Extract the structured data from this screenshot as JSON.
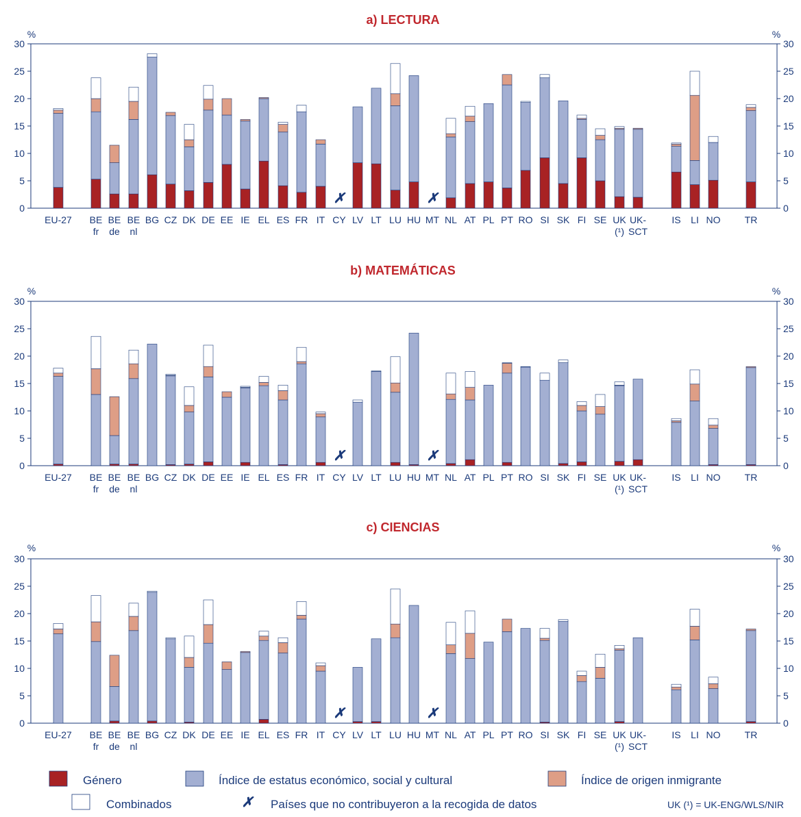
{
  "percent_symbol": "%",
  "categories": [
    [
      "EU-27"
    ],
    [
      "BE",
      "fr"
    ],
    [
      "BE",
      "de"
    ],
    [
      "BE",
      "nl"
    ],
    [
      "BG"
    ],
    [
      "CZ"
    ],
    [
      "DK"
    ],
    [
      "DE"
    ],
    [
      "EE"
    ],
    [
      "IE"
    ],
    [
      "EL"
    ],
    [
      "ES"
    ],
    [
      "FR"
    ],
    [
      "IT"
    ],
    [
      "CY"
    ],
    [
      "LV"
    ],
    [
      "LT"
    ],
    [
      "LU"
    ],
    [
      "HU"
    ],
    [
      "MT"
    ],
    [
      "NL"
    ],
    [
      "AT"
    ],
    [
      "PL"
    ],
    [
      "PT"
    ],
    [
      "RO"
    ],
    [
      "SI"
    ],
    [
      "SK"
    ],
    [
      "FI"
    ],
    [
      "SE"
    ],
    [
      "UK",
      "(¹)"
    ],
    [
      "UK-",
      "SCT"
    ],
    [
      "IS"
    ],
    [
      "LI"
    ],
    [
      "NO"
    ],
    [
      "TR"
    ]
  ],
  "missing_marker": "✗",
  "colors": {
    "genero": "#a82224",
    "indice": "#a3afd2",
    "inmigrante": "#de9e86",
    "combinados": "#ffffff",
    "axis": "#1b3a7a",
    "title": "#c0272d"
  },
  "legend": {
    "genero": "Género",
    "indice": "Índice de estatus económico, social y cultural",
    "inmigrante": "Índice de origen inmigrante",
    "combinados": "Combinados",
    "missing": "Países que no contribuyeron a la recogida de datos",
    "uk_note": "UK (¹) = UK-ENG/WLS/NIR"
  },
  "chart_data": [
    {
      "type": "bar",
      "stacked": true,
      "title": "a) LECTURA",
      "ylabel": "%",
      "ylim": [
        0,
        30
      ],
      "yticks": [
        0,
        5,
        10,
        15,
        20,
        25,
        30
      ],
      "missing": [
        "CY",
        "MT"
      ],
      "series": [
        {
          "name": "Género",
          "values": [
            3.8,
            5.3,
            2.6,
            2.6,
            6.1,
            4.4,
            3.2,
            4.7,
            8.0,
            3.5,
            8.6,
            4.1,
            2.9,
            4.0,
            null,
            8.3,
            8.1,
            3.3,
            4.8,
            null,
            1.9,
            4.5,
            4.8,
            3.7,
            6.9,
            9.2,
            4.5,
            9.2,
            5.0,
            2.1,
            2.0,
            6.6,
            4.3,
            5.1,
            4.8
          ]
        },
        {
          "name": "Índice de estatus económico, social y cultural",
          "values": [
            13.5,
            12.3,
            5.7,
            13.6,
            21.5,
            12.5,
            8.0,
            13.2,
            9.0,
            12.4,
            11.4,
            9.8,
            14.7,
            7.7,
            null,
            10.2,
            13.8,
            15.4,
            19.4,
            null,
            11.1,
            11.3,
            14.3,
            18.8,
            12.4,
            14.6,
            15.1,
            7.0,
            7.5,
            12.3,
            12.4,
            4.7,
            4.4,
            6.9,
            13.0
          ]
        },
        {
          "name": "Índice de origen inmigrante",
          "values": [
            0.6,
            2.4,
            3.2,
            3.3,
            0.0,
            0.6,
            1.3,
            2.0,
            3.0,
            0.3,
            0.2,
            1.4,
            0.0,
            0.8,
            null,
            0.0,
            0.0,
            2.2,
            0.0,
            null,
            0.6,
            1.0,
            0.0,
            1.9,
            0.0,
            0.0,
            0.0,
            0.2,
            0.8,
            0.2,
            0.2,
            0.4,
            11.9,
            0.0,
            0.6
          ]
        },
        {
          "name": "Combinados",
          "values": [
            0.3,
            3.8,
            0.0,
            2.6,
            0.6,
            0.0,
            2.8,
            2.5,
            0.0,
            0.0,
            0.0,
            0.4,
            1.2,
            0.0,
            null,
            0.0,
            0.0,
            5.5,
            0.0,
            null,
            2.8,
            1.8,
            0.0,
            0.0,
            0.2,
            0.6,
            0.0,
            0.6,
            1.2,
            0.3,
            0.0,
            0.2,
            4.4,
            1.1,
            0.5
          ]
        }
      ]
    },
    {
      "type": "bar",
      "stacked": true,
      "title": "b) MATEMÁTICAS",
      "ylabel": "%",
      "ylim": [
        0,
        30
      ],
      "yticks": [
        0,
        5,
        10,
        15,
        20,
        25,
        30
      ],
      "missing": [
        "CY",
        "MT"
      ],
      "series": [
        {
          "name": "Género",
          "values": [
            0.3,
            0.0,
            0.3,
            0.3,
            0.0,
            0.2,
            0.3,
            0.7,
            0.0,
            0.6,
            0.0,
            0.2,
            0.0,
            0.6,
            null,
            0.0,
            0.0,
            0.6,
            0.2,
            null,
            0.4,
            1.1,
            0.0,
            0.6,
            0.0,
            0.0,
            0.4,
            0.7,
            0.0,
            0.8,
            1.1,
            0.0,
            0.0,
            0.2,
            0.2
          ]
        },
        {
          "name": "Índice de estatus económico, social y cultural",
          "values": [
            16.0,
            13.0,
            5.2,
            15.6,
            22.2,
            16.2,
            9.5,
            15.5,
            12.5,
            13.6,
            14.6,
            11.8,
            18.6,
            8.3,
            null,
            11.6,
            17.2,
            12.8,
            24.0,
            null,
            11.7,
            10.9,
            14.7,
            16.3,
            18.0,
            15.6,
            18.4,
            9.3,
            9.4,
            13.8,
            14.7,
            7.9,
            11.8,
            6.6,
            17.7
          ]
        },
        {
          "name": "Índice de origen inmigrante",
          "values": [
            0.6,
            4.7,
            7.1,
            2.7,
            0.0,
            0.1,
            1.2,
            1.9,
            1.0,
            0.1,
            0.6,
            1.7,
            0.4,
            0.6,
            null,
            0.0,
            0.0,
            1.7,
            0.0,
            null,
            1.0,
            2.3,
            0.0,
            1.8,
            0.0,
            0.0,
            0.0,
            1.0,
            1.4,
            0.1,
            0.0,
            0.3,
            3.1,
            0.6,
            0.2
          ]
        },
        {
          "name": "Combinados",
          "values": [
            0.9,
            5.9,
            0.0,
            2.5,
            0.0,
            0.2,
            3.4,
            3.9,
            0.0,
            0.2,
            1.1,
            1.0,
            2.6,
            0.3,
            null,
            0.4,
            0.1,
            4.8,
            0.0,
            null,
            3.8,
            2.9,
            0.0,
            0.1,
            0.1,
            1.3,
            0.5,
            0.7,
            2.2,
            0.6,
            0.0,
            0.4,
            2.6,
            1.2,
            0.0
          ]
        }
      ]
    },
    {
      "type": "bar",
      "stacked": true,
      "title": "c) CIENCIAS",
      "ylabel": "%",
      "ylim": [
        0,
        30
      ],
      "yticks": [
        0,
        5,
        10,
        15,
        20,
        25,
        30
      ],
      "missing": [
        "CY",
        "MT"
      ],
      "series": [
        {
          "name": "Género",
          "values": [
            0.0,
            0.0,
            0.4,
            0.0,
            0.4,
            0.0,
            0.2,
            0.0,
            0.0,
            0.0,
            0.7,
            0.0,
            0.0,
            0.0,
            null,
            0.3,
            0.3,
            0.0,
            0.0,
            null,
            0.0,
            0.0,
            0.0,
            0.0,
            0.0,
            0.2,
            0.0,
            0.0,
            0.0,
            0.3,
            0.0,
            0.0,
            0.0,
            0.0,
            0.3
          ]
        },
        {
          "name": "Índice de estatus económico, social y cultural",
          "values": [
            16.3,
            14.9,
            6.3,
            16.9,
            23.5,
            15.4,
            10.0,
            14.6,
            9.8,
            12.9,
            14.4,
            12.8,
            19.0,
            9.5,
            null,
            9.9,
            15.1,
            15.6,
            21.5,
            null,
            12.7,
            11.8,
            14.8,
            16.7,
            17.3,
            14.9,
            18.6,
            7.6,
            8.2,
            13.0,
            15.6,
            6.1,
            15.2,
            6.3,
            16.6
          ]
        },
        {
          "name": "Índice de origen inmigrante",
          "values": [
            0.9,
            3.6,
            5.7,
            2.6,
            0.0,
            0.0,
            1.8,
            3.4,
            1.4,
            0.2,
            0.8,
            1.9,
            0.7,
            1.0,
            null,
            0.0,
            0.0,
            2.5,
            0.0,
            null,
            1.6,
            4.6,
            0.0,
            2.3,
            0.0,
            0.4,
            0.0,
            1.1,
            2.0,
            0.3,
            0.0,
            0.5,
            2.5,
            0.9,
            0.3
          ]
        },
        {
          "name": "Combinados",
          "values": [
            1.0,
            4.8,
            0.0,
            2.4,
            0.2,
            0.2,
            3.9,
            4.5,
            0.0,
            0.0,
            0.9,
            0.9,
            2.5,
            0.5,
            null,
            0.0,
            0.0,
            6.4,
            0.0,
            null,
            4.1,
            4.1,
            0.0,
            0.0,
            0.0,
            1.8,
            0.3,
            0.8,
            2.4,
            0.6,
            0.0,
            0.5,
            3.1,
            1.2,
            0.0
          ]
        }
      ]
    }
  ]
}
